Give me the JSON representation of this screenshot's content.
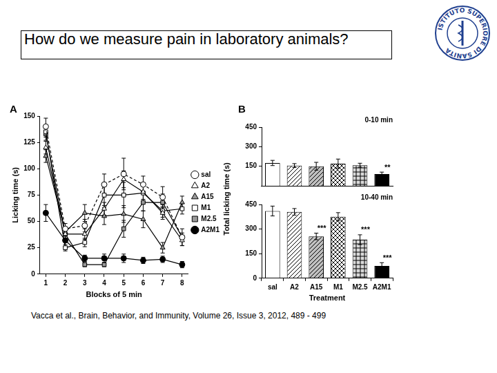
{
  "slide": {
    "title": "How do we measure pain in laboratory animals?",
    "logo_text": "ISTITUTO SUPERIORE DI SANITÀ",
    "citation": "Vacca et al., Brain, Behavior, and Immunity, Volume 26, Issue 3, 2012, 489 - 499"
  },
  "chart_data": [
    {
      "type": "line",
      "panel_label": "A",
      "xlabel": "Blocks of 5 min",
      "ylabel": "Licking time (s)",
      "x": [
        1,
        2,
        3,
        4,
        5,
        6,
        7,
        8
      ],
      "xlim": [
        0.7,
        8.3
      ],
      "xticks": [
        1,
        2,
        3,
        4,
        5,
        6,
        7,
        8
      ],
      "ylim": [
        0,
        150
      ],
      "yticks": [
        0,
        25,
        50,
        75,
        100,
        125,
        150
      ],
      "grid": false,
      "legend": "right",
      "series": [
        {
          "name": "sal",
          "color": "#ffffff",
          "marker": "circle",
          "line_style": "dashed",
          "values": [
            140,
            43,
            46,
            85,
            95,
            85,
            73,
            35
          ],
          "errors": [
            8,
            5,
            6,
            10,
            15,
            8,
            10,
            8
          ]
        },
        {
          "name": "A2",
          "color": "#ffffff",
          "marker": "triangle",
          "line_style": "solid",
          "values": [
            120,
            38,
            38,
            62,
            90,
            78,
            58,
            32
          ],
          "errors": [
            6,
            4,
            5,
            6,
            8,
            7,
            6,
            5
          ]
        },
        {
          "name": "A15",
          "color": "#999999",
          "marker": "triangle",
          "line_style": "solid",
          "values": [
            112,
            40,
            58,
            55,
            57,
            52,
            25,
            68
          ],
          "errors": [
            6,
            4,
            8,
            8,
            8,
            8,
            5,
            6
          ]
        },
        {
          "name": "M1",
          "color": "#ffffff",
          "marker": "square",
          "line_style": "solid",
          "values": [
            135,
            25,
            30,
            75,
            75,
            77,
            60,
            62
          ],
          "errors": [
            5,
            3,
            4,
            10,
            12,
            8,
            6,
            5
          ]
        },
        {
          "name": "M2.5",
          "color": "#999999",
          "marker": "square",
          "line_style": "solid",
          "values": [
            133,
            38,
            9,
            9,
            43,
            68,
            68,
            35
          ],
          "errors": [
            6,
            4,
            2,
            2,
            8,
            8,
            8,
            4
          ]
        },
        {
          "name": "A2M1",
          "color": "#000000",
          "marker": "circle",
          "line_style": "solid",
          "values": [
            58,
            32,
            15,
            15,
            15,
            13,
            14,
            9
          ],
          "errors": [
            8,
            6,
            3,
            4,
            4,
            3,
            3,
            3
          ]
        }
      ]
    },
    {
      "type": "bar",
      "panel_label": "B",
      "title": "0-10 min",
      "ylabel": "Total licking time (s)",
      "categories": [
        "sal",
        "A2",
        "A15",
        "M1",
        "M2.5",
        "A2M1"
      ],
      "values": [
        175,
        155,
        150,
        170,
        158,
        90
      ],
      "errors": [
        20,
        15,
        30,
        35,
        15,
        15
      ],
      "colors": [
        "#ffffff",
        "#ffffff",
        "#bfbfbf",
        "#ffffff",
        "#d9d9d9",
        "#000000"
      ],
      "ylim": [
        0,
        450
      ],
      "yticks": [
        150,
        300,
        450
      ],
      "grid": false,
      "tick_labels": "y",
      "annotations": [
        {
          "category": "A2M1",
          "text": "**"
        }
      ]
    },
    {
      "type": "bar",
      "title": "10-40 min",
      "xlabel": "Treatment",
      "categories": [
        "sal",
        "A2",
        "A15",
        "M1",
        "M2.5",
        "A2M1"
      ],
      "values": [
        410,
        405,
        255,
        375,
        235,
        75
      ],
      "errors": [
        30,
        20,
        20,
        25,
        30,
        20
      ],
      "colors": [
        "#ffffff",
        "#ffffff",
        "#bfbfbf",
        "#ffffff",
        "#d9d9d9",
        "#000000"
      ],
      "ylim": [
        0,
        450
      ],
      "yticks": [
        0,
        150,
        300,
        450
      ],
      "grid": false,
      "annotations": [
        {
          "category": "A15",
          "text": "***"
        },
        {
          "category": "M2.5",
          "text": "***"
        },
        {
          "category": "A2M1",
          "text": "***"
        }
      ]
    }
  ]
}
